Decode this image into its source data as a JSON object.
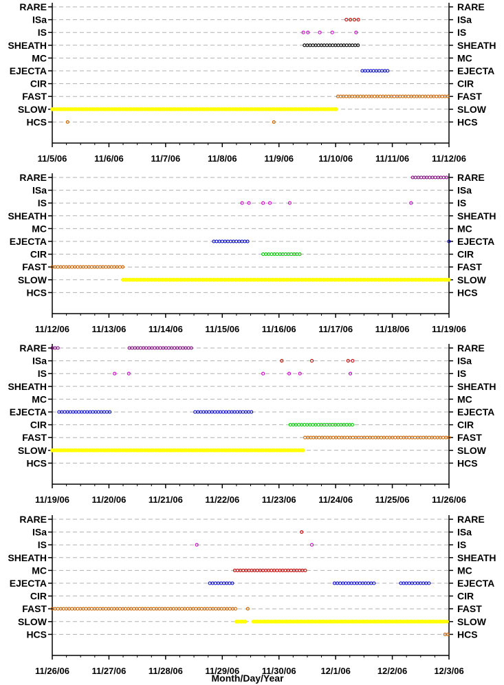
{
  "chart_data": {
    "type": "scatter",
    "xlabel": "Month/Day/Year",
    "categories": [
      "RARE",
      "ISa",
      "IS",
      "SHEATH",
      "MC",
      "EJECTA",
      "CIR",
      "FAST",
      "SLOW",
      "HCS"
    ],
    "colors": {
      "RARE": "#800080",
      "ISa": "#cc0000",
      "IS": "#cc00cc",
      "SHEATH": "#000000",
      "MC": "#cc0000",
      "EJECTA": "#0000cc",
      "CIR": "#00cc00",
      "FAST": "#cc6600",
      "SLOW": "#ffff00",
      "HCS": "#cc6600"
    },
    "panels": [
      {
        "xticks": [
          "11/5/06",
          "11/6/06",
          "11/7/06",
          "11/8/06",
          "11/9/06",
          "11/10/06",
          "11/11/06",
          "11/12/06"
        ],
        "xrange": [
          0,
          7
        ],
        "series": [
          {
            "category": "ISa",
            "points": [
              5.19,
              5.26,
              5.33,
              5.4
            ]
          },
          {
            "category": "IS",
            "points": [
              4.43,
              4.51,
              4.72,
              4.94,
              5.36
            ]
          },
          {
            "category": "SLOW",
            "segments": [
              [
                0.0,
                5.02
              ]
            ]
          },
          {
            "category": "SHEATH",
            "segments": [
              [
                4.45,
                5.4
              ]
            ]
          },
          {
            "category": "EJECTA",
            "segments": [
              [
                5.47,
                5.93
              ]
            ]
          },
          {
            "category": "FAST",
            "segments": [
              [
                5.04,
                7.0
              ]
            ]
          },
          {
            "category": "HCS",
            "points": [
              0.27,
              3.91
            ]
          }
        ]
      },
      {
        "xticks": [
          "11/12/06",
          "11/13/06",
          "11/14/06",
          "11/15/06",
          "11/16/06",
          "11/17/06",
          "11/18/06",
          "11/19/06"
        ],
        "xrange": [
          0,
          7
        ],
        "series": [
          {
            "category": "RARE",
            "segments": [
              [
                6.36,
                7.0
              ]
            ]
          },
          {
            "category": "IS",
            "points": [
              3.35,
              3.47,
              3.72,
              3.84,
              4.19,
              6.33
            ]
          },
          {
            "category": "EJECTA",
            "segments": [
              [
                2.85,
                3.45
              ]
            ]
          },
          {
            "category": "EJECTA",
            "points": [
              7.0
            ]
          },
          {
            "category": "CIR",
            "segments": [
              [
                3.72,
                4.4
              ]
            ]
          },
          {
            "category": "FAST",
            "segments": [
              [
                0.0,
                1.25
              ]
            ]
          },
          {
            "category": "SLOW",
            "segments": [
              [
                1.25,
                7.0
              ]
            ]
          }
        ]
      },
      {
        "xticks": [
          "11/19/06",
          "11/20/06",
          "11/21/06",
          "11/22/06",
          "11/23/06",
          "11/24/06",
          "11/25/06",
          "11/26/06"
        ],
        "xrange": [
          0,
          7
        ],
        "series": [
          {
            "category": "RARE",
            "segments": [
              [
                0.0,
                0.1
              ],
              [
                1.36,
                2.48
              ]
            ]
          },
          {
            "category": "ISa",
            "points": [
              4.05,
              4.58,
              5.22,
              5.3
            ]
          },
          {
            "category": "IS",
            "points": [
              1.1,
              1.35,
              3.72,
              4.18,
              4.37,
              5.26
            ]
          },
          {
            "category": "EJECTA",
            "segments": [
              [
                0.12,
                1.06
              ],
              [
                2.52,
                3.54
              ]
            ]
          },
          {
            "category": "CIR",
            "segments": [
              [
                4.2,
                5.32
              ]
            ]
          },
          {
            "category": "FAST",
            "segments": [
              [
                4.46,
                7.0
              ]
            ]
          },
          {
            "category": "SLOW",
            "segments": [
              [
                0.0,
                4.44
              ]
            ]
          }
        ]
      },
      {
        "xticks": [
          "11/26/06",
          "11/27/06",
          "11/28/06",
          "11/29/06",
          "11/30/06",
          "12/1/06",
          "12/2/06",
          "12/3/06"
        ],
        "xrange": [
          0,
          7
        ],
        "series": [
          {
            "category": "ISa",
            "points": [
              4.4
            ]
          },
          {
            "category": "IS",
            "points": [
              2.55,
              4.58
            ]
          },
          {
            "category": "MC",
            "segments": [
              [
                3.22,
                4.47
              ]
            ]
          },
          {
            "category": "EJECTA",
            "segments": [
              [
                2.78,
                3.22
              ],
              [
                4.98,
                5.72
              ],
              [
                6.15,
                6.65
              ]
            ]
          },
          {
            "category": "FAST",
            "segments": [
              [
                0.0,
                3.27
              ]
            ]
          },
          {
            "category": "FAST",
            "points": [
              3.45
            ]
          },
          {
            "category": "SLOW",
            "segments": [
              [
                3.25,
                3.42
              ],
              [
                3.55,
                7.0
              ]
            ]
          },
          {
            "category": "HCS",
            "segments": [
              [
                6.93,
                7.0
              ]
            ]
          }
        ]
      }
    ]
  }
}
